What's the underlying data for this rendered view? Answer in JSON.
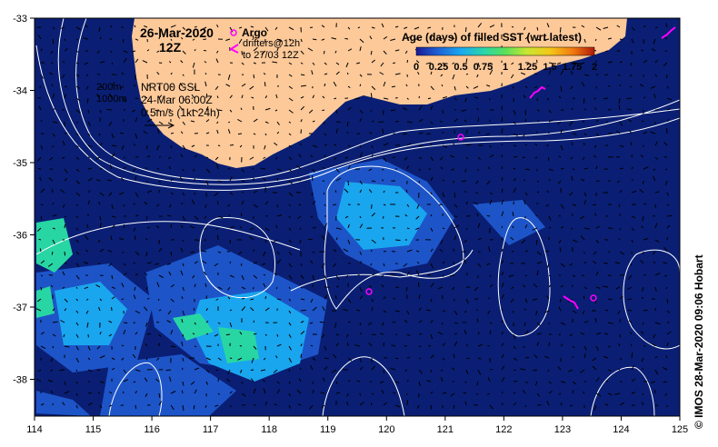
{
  "title": {
    "date": "26-Mar-2020",
    "time": "12Z"
  },
  "legend": {
    "argo_label": "Argo",
    "drifters_label": "drifters@12h",
    "drifters_label2": "to 27/03 12Z",
    "colorbar_title": "Age (days) of filled SST (wrt latest)",
    "colorbar_ticks": [
      "0",
      "0.25",
      "0.5",
      "0.75",
      "1",
      "1.25",
      "1.5",
      "1.75",
      "2"
    ],
    "colorbar_colors": [
      "#1a1a96",
      "#1f5fd4",
      "#1aa8f0",
      "#2ad6a8",
      "#5ae05a",
      "#c8e632",
      "#f4c818",
      "#f07a10",
      "#b01a0a"
    ],
    "bathy_200": "200m",
    "bathy_1000": "1000m",
    "product": "NRT00 GSL",
    "product_time": "24-Mar 06:00Z",
    "scale_vector": "0.5m/s (1kt 24h)"
  },
  "axes": {
    "x_ticks": [
      "114",
      "115",
      "116",
      "117",
      "118",
      "119",
      "120",
      "121",
      "122",
      "123",
      "124",
      "125"
    ],
    "y_ticks": [
      "-33",
      "-34",
      "-35",
      "-36",
      "-37",
      "-38"
    ]
  },
  "credit": "© IMOS 28-Mar-2020 09:06 Hobart",
  "colors": {
    "land": "#fdc999",
    "ocean_old": "#071e6b",
    "contour": "#ffffff",
    "argo": "#ff00ff"
  }
}
